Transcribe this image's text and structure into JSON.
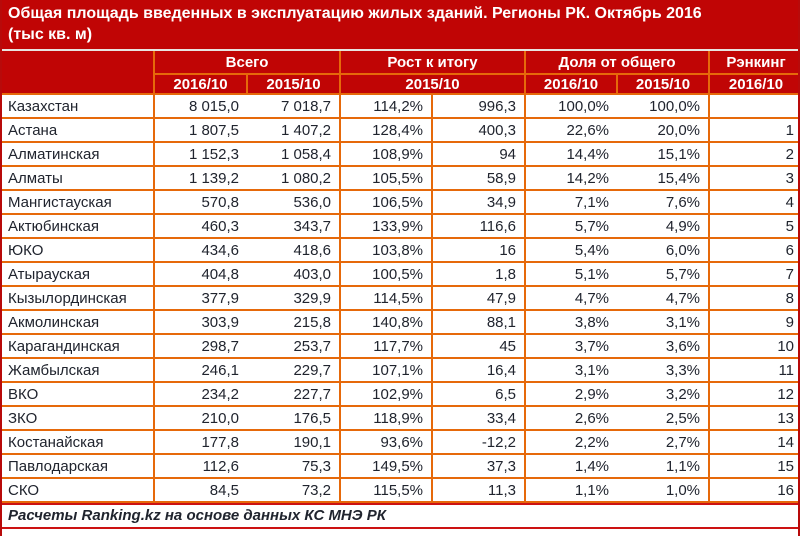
{
  "colors": {
    "header_bg": "#C00505",
    "header_text": "#FFFFFF",
    "grid_border": "#E6690A",
    "outer_border": "#CC1212",
    "cell_text": "#20242E"
  },
  "chart_data": {
    "type": "table",
    "title": "Общая площадь введенных в эксплуатацию жилых зданий. Регионы РК. Октябрь 2016\n(тыс кв. м)",
    "column_groups": [
      {
        "label": "Всего",
        "span": 2
      },
      {
        "label": "Рост к итогу",
        "span": 2
      },
      {
        "label": "Доля от общего",
        "span": 2
      },
      {
        "label": "Рэнкинг",
        "span": 1
      }
    ],
    "subheaders": [
      "2016/10",
      "2015/10",
      "2015/10",
      "2016/10",
      "2015/10",
      "2016/10"
    ],
    "rows": [
      [
        "Казахстан",
        "8 015,0",
        "7 018,7",
        "114,2%",
        "996,3",
        "100,0%",
        "100,0%",
        ""
      ],
      [
        "Астана",
        "1 807,5",
        "1 407,2",
        "128,4%",
        "400,3",
        "22,6%",
        "20,0%",
        "1"
      ],
      [
        "Алматинская",
        "1 152,3",
        "1 058,4",
        "108,9%",
        "94",
        "14,4%",
        "15,1%",
        "2"
      ],
      [
        "Алматы",
        "1 139,2",
        "1 080,2",
        "105,5%",
        "58,9",
        "14,2%",
        "15,4%",
        "3"
      ],
      [
        "Мангистауская",
        "570,8",
        "536,0",
        "106,5%",
        "34,9",
        "7,1%",
        "7,6%",
        "4"
      ],
      [
        "Актюбинская",
        "460,3",
        "343,7",
        "133,9%",
        "116,6",
        "5,7%",
        "4,9%",
        "5"
      ],
      [
        "ЮКО",
        "434,6",
        "418,6",
        "103,8%",
        "16",
        "5,4%",
        "6,0%",
        "6"
      ],
      [
        "Атырауская",
        "404,8",
        "403,0",
        "100,5%",
        "1,8",
        "5,1%",
        "5,7%",
        "7"
      ],
      [
        "Кызылординская",
        "377,9",
        "329,9",
        "114,5%",
        "47,9",
        "4,7%",
        "4,7%",
        "8"
      ],
      [
        "Акмолинская",
        "303,9",
        "215,8",
        "140,8%",
        "88,1",
        "3,8%",
        "3,1%",
        "9"
      ],
      [
        "Карагандинская",
        "298,7",
        "253,7",
        "117,7%",
        "45",
        "3,7%",
        "3,6%",
        "10"
      ],
      [
        "Жамбылская",
        "246,1",
        "229,7",
        "107,1%",
        "16,4",
        "3,1%",
        "3,3%",
        "11"
      ],
      [
        "ВКО",
        "234,2",
        "227,7",
        "102,9%",
        "6,5",
        "2,9%",
        "3,2%",
        "12"
      ],
      [
        "ЗКО",
        "210,0",
        "176,5",
        "118,9%",
        "33,4",
        "2,6%",
        "2,5%",
        "13"
      ],
      [
        "Костанайская",
        "177,8",
        "190,1",
        "93,6%",
        "-12,2",
        "2,2%",
        "2,7%",
        "14"
      ],
      [
        "Павлодарская",
        "112,6",
        "75,3",
        "149,5%",
        "37,3",
        "1,4%",
        "1,1%",
        "15"
      ],
      [
        "СКО",
        "84,5",
        "73,2",
        "115,5%",
        "11,3",
        "1,1%",
        "1,0%",
        "16"
      ]
    ],
    "footer": "Расчеты Ranking.kz на основе данных КС МНЭ РК"
  }
}
